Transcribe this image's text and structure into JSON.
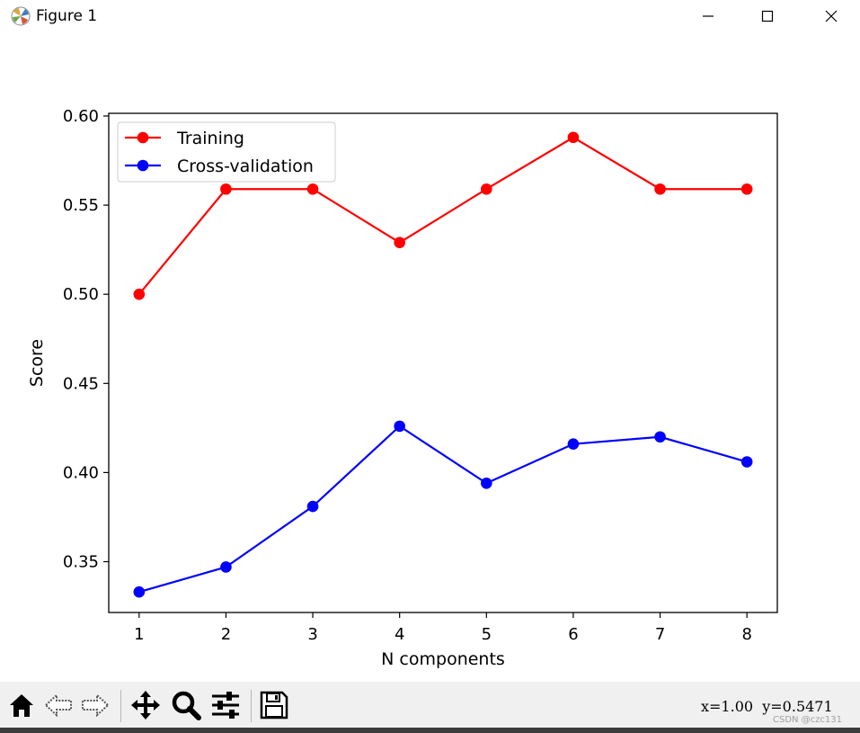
{
  "window": {
    "title": "Figure 1",
    "controls": {
      "minimize": "minimize-icon",
      "maximize": "maximize-icon",
      "close": "close-icon"
    }
  },
  "chart_data": {
    "type": "line",
    "title": "",
    "xlabel": "N components",
    "ylabel": "Score",
    "x": [
      1,
      2,
      3,
      4,
      5,
      6,
      7,
      8
    ],
    "xlim": [
      0.65,
      8.35
    ],
    "ylim": [
      0.3215,
      0.6015
    ],
    "xticks": [
      1,
      2,
      3,
      4,
      5,
      6,
      7,
      8
    ],
    "xtick_labels": [
      "1",
      "2",
      "3",
      "4",
      "5",
      "6",
      "7",
      "8"
    ],
    "yticks": [
      0.35,
      0.4,
      0.45,
      0.5,
      0.55,
      0.6
    ],
    "ytick_labels": [
      "0.35",
      "0.40",
      "0.45",
      "0.50",
      "0.55",
      "0.60"
    ],
    "grid": false,
    "legend": {
      "placement": "upper-left"
    },
    "series": [
      {
        "name": "Training",
        "color": "#ff0000",
        "marker": "circle",
        "values": [
          0.5,
          0.559,
          0.559,
          0.529,
          0.559,
          0.588,
          0.559,
          0.559
        ]
      },
      {
        "name": "Cross-validation",
        "color": "#0000ff",
        "marker": "circle",
        "values": [
          0.333,
          0.347,
          0.381,
          0.426,
          0.394,
          0.416,
          0.42,
          0.406
        ]
      }
    ]
  },
  "toolbar": {
    "buttons": [
      "home-icon",
      "back-icon",
      "forward-icon",
      "pan-icon",
      "zoom-icon",
      "configure-subplots-icon",
      "save-icon"
    ],
    "coordinates": "x=1.00  y=0.5471",
    "watermark": "CSDN @czc131"
  }
}
